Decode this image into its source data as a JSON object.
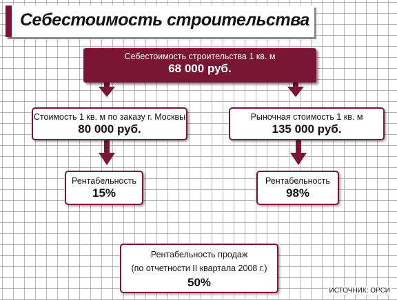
{
  "title": "Себестоимость строительства",
  "cost_box": {
    "label": "Себестоимость строительства 1 кв. м",
    "value": "68 000 руб."
  },
  "moscow_box": {
    "label": "Стоимость 1 кв. м по заказу г. Москвы",
    "value": "80 000 руб."
  },
  "market_box": {
    "label": "Рыночная стоимость 1 кв. м",
    "value": "135 000 руб."
  },
  "profit_left": {
    "label": "Рентабельность",
    "value": "15%"
  },
  "profit_right": {
    "label": "Рентабельность",
    "value": "98%"
  },
  "sales_box": {
    "label_line1": "Рентабельность продаж",
    "label_line2": "(по отчетности II квартала 2008 г.)",
    "value": "50%"
  },
  "source": "ИСТОЧНИК: ОРСИ",
  "colors": {
    "accent": "#7a1535",
    "grid": "#b8b8b8"
  }
}
